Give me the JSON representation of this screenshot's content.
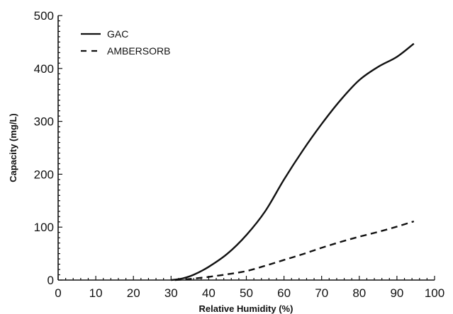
{
  "chart_data": {
    "type": "line",
    "xlabel": "Relative Humidity (%)",
    "ylabel": "Capacity (mg/L)",
    "xlim": [
      0,
      100
    ],
    "ylim": [
      0,
      500
    ],
    "xticks": [
      0,
      10,
      20,
      30,
      40,
      50,
      60,
      70,
      80,
      90,
      100
    ],
    "yticks": [
      0,
      100,
      200,
      300,
      400,
      500
    ],
    "grid": false,
    "legend_position": "top-left",
    "series": [
      {
        "name": "GAC",
        "style": "solid",
        "color": "#111111",
        "points": [
          [
            30,
            0
          ],
          [
            33,
            3
          ],
          [
            36,
            10
          ],
          [
            40,
            25
          ],
          [
            45,
            50
          ],
          [
            50,
            85
          ],
          [
            55,
            130
          ],
          [
            60,
            190
          ],
          [
            65,
            245
          ],
          [
            70,
            295
          ],
          [
            75,
            340
          ],
          [
            80,
            378
          ],
          [
            85,
            403
          ],
          [
            90,
            422
          ],
          [
            94.5,
            447
          ]
        ]
      },
      {
        "name": "AMBERSORB",
        "style": "dashed",
        "color": "#111111",
        "points": [
          [
            31,
            0
          ],
          [
            35,
            2
          ],
          [
            40,
            6
          ],
          [
            45,
            11
          ],
          [
            50,
            17
          ],
          [
            55,
            27
          ],
          [
            60,
            38
          ],
          [
            65,
            49
          ],
          [
            70,
            61
          ],
          [
            75,
            72
          ],
          [
            80,
            82
          ],
          [
            85,
            91
          ],
          [
            90,
            101
          ],
          [
            94.5,
            111
          ]
        ]
      }
    ]
  }
}
